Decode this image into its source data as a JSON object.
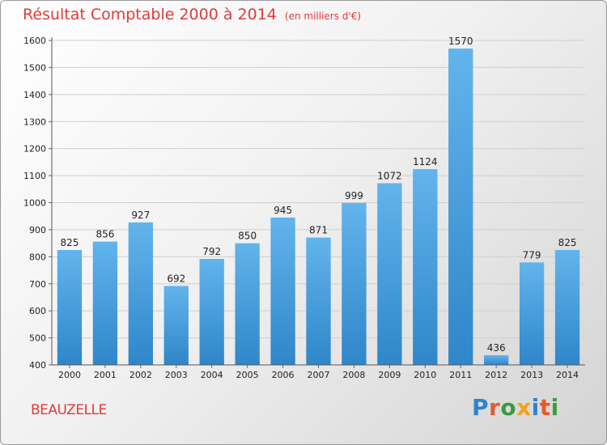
{
  "header": {
    "title": "Résultat Comptable 2000 à 2014",
    "unit": "(en milliers d'€)"
  },
  "footer": {
    "commune": "BEAUZELLE",
    "logo": "Proxiti"
  },
  "colors": {
    "title": "#e03a3a",
    "bar_top": "#62b4ec",
    "bar_bottom": "#2f86c9",
    "logo_letters": [
      "#2f84cc",
      "#e35b2a",
      "#3a9c3a",
      "#f2a21b",
      "#2f84cc",
      "#e35b2a",
      "#3a9c3a"
    ]
  },
  "chart_data": {
    "type": "bar",
    "title": "Résultat Comptable 2000 à 2014",
    "subtitle": "(en milliers d'€)",
    "xlabel": "",
    "ylabel": "",
    "categories": [
      "2000",
      "2001",
      "2002",
      "2003",
      "2004",
      "2005",
      "2006",
      "2007",
      "2008",
      "2009",
      "2010",
      "2011",
      "2012",
      "2013",
      "2014"
    ],
    "values": [
      825,
      856,
      927,
      692,
      792,
      850,
      945,
      871,
      999,
      1072,
      1124,
      1570,
      436,
      779,
      825
    ],
    "ylim": [
      400,
      1600
    ],
    "yticks": [
      400,
      500,
      600,
      700,
      800,
      900,
      1000,
      1100,
      1200,
      1300,
      1400,
      1500,
      1600
    ],
    "grid": true,
    "data_labels": true
  }
}
